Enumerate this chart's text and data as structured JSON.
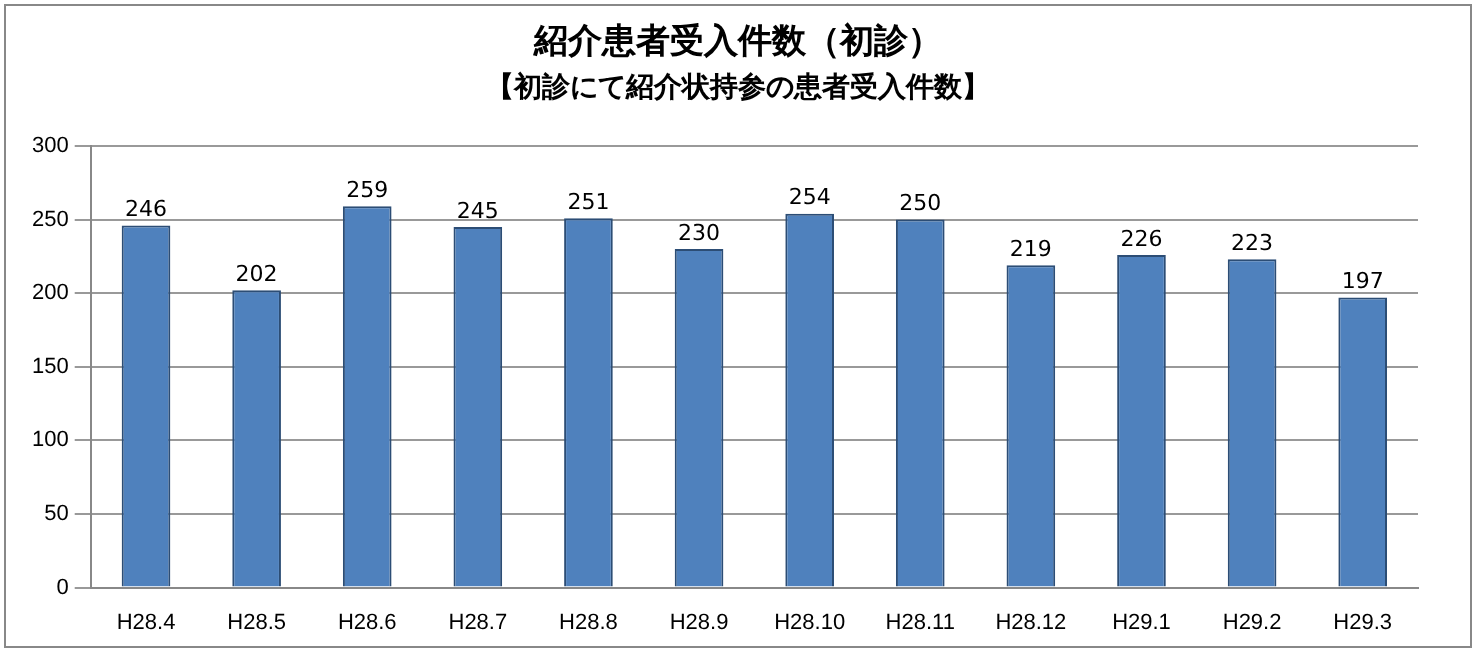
{
  "chart_data": {
    "type": "bar",
    "title": "紹介患者受入件数（初診）",
    "subtitle": "【初診にて紹介状持参の患者受入件数】",
    "categories": [
      "H28.4",
      "H28.5",
      "H28.6",
      "H28.7",
      "H28.8",
      "H28.9",
      "H28.10",
      "H28.11",
      "H28.12",
      "H29.1",
      "H29.2",
      "H29.3"
    ],
    "values": [
      246,
      202,
      259,
      245,
      251,
      230,
      254,
      250,
      219,
      226,
      223,
      197
    ],
    "color": "#4f81bd",
    "ylim": [
      0,
      300
    ],
    "yticks": [
      0,
      50,
      100,
      150,
      200,
      250,
      300
    ],
    "grid": "y",
    "data_labels": true
  }
}
